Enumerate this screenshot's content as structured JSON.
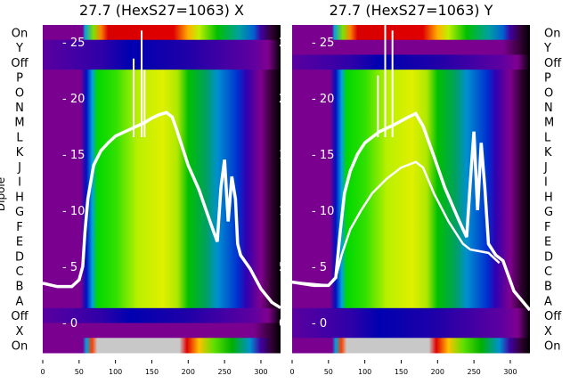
{
  "chart_data": [
    {
      "type": "heatmap",
      "title": "27.7 (HexS27=1063) X",
      "ylabel": "Dipole",
      "row_labels_side": "left",
      "rows": [
        "On",
        "Y",
        "Off",
        "P",
        "O",
        "N",
        "M",
        "L",
        "K",
        "J",
        "I",
        "H",
        "G",
        "F",
        "E",
        "D",
        "C",
        "B",
        "A",
        "Off",
        "X",
        "On"
      ],
      "xlim": [
        0,
        327
      ],
      "xticks": [
        0,
        50,
        100,
        150,
        200,
        250,
        300
      ],
      "inner_ylim": [
        -2.7,
        26.5
      ],
      "inner_yticks": [
        0,
        5,
        10,
        15,
        20,
        25
      ],
      "curves": [
        [
          [
            0,
            3.5
          ],
          [
            20,
            3.2
          ],
          [
            40,
            3.2
          ],
          [
            50,
            3.8
          ],
          [
            55,
            5
          ],
          [
            58,
            8
          ],
          [
            62,
            11
          ],
          [
            70,
            14
          ],
          [
            80,
            15.3
          ],
          [
            90,
            16
          ],
          [
            100,
            16.6
          ],
          [
            120,
            17.2
          ],
          [
            140,
            17.8
          ],
          [
            150,
            18.2
          ],
          [
            160,
            18.5
          ],
          [
            170,
            18.7
          ],
          [
            178,
            18.3
          ],
          [
            185,
            17
          ],
          [
            200,
            14
          ],
          [
            215,
            11.8
          ],
          [
            230,
            9
          ],
          [
            240,
            7.2
          ],
          [
            245,
            12
          ],
          [
            250,
            14.5
          ],
          [
            255,
            9
          ],
          [
            260,
            13
          ],
          [
            265,
            11
          ],
          [
            268,
            7
          ],
          [
            272,
            6
          ],
          [
            285,
            4.8
          ],
          [
            300,
            3
          ],
          [
            315,
            1.8
          ],
          [
            327,
            1.3
          ]
        ]
      ],
      "spikes": [
        [
          125,
          23.5
        ],
        [
          136,
          26
        ],
        [
          140,
          22.5
        ]
      ]
    },
    {
      "type": "heatmap",
      "title": "27.7 (HexS27=1063) Y",
      "row_labels_side": "right",
      "rows": [
        "On",
        "Y",
        "Off",
        "P",
        "O",
        "N",
        "M",
        "L",
        "K",
        "J",
        "I",
        "H",
        "G",
        "F",
        "E",
        "D",
        "C",
        "B",
        "A",
        "Off",
        "X",
        "On"
      ],
      "xlim": [
        0,
        327
      ],
      "xticks": [
        0,
        50,
        100,
        150,
        200,
        250,
        300
      ],
      "inner_ylim": [
        -2.7,
        26.5
      ],
      "inner_yticks": [
        0,
        5,
        10,
        15,
        20,
        25
      ],
      "curves": [
        [
          [
            0,
            3.6
          ],
          [
            30,
            3.3
          ],
          [
            50,
            3.3
          ],
          [
            60,
            4
          ],
          [
            66,
            8
          ],
          [
            72,
            11.5
          ],
          [
            80,
            13.5
          ],
          [
            90,
            15
          ],
          [
            100,
            16
          ],
          [
            120,
            17
          ],
          [
            140,
            17.6
          ],
          [
            160,
            18.3
          ],
          [
            170,
            18.6
          ],
          [
            180,
            17.5
          ],
          [
            195,
            14.8
          ],
          [
            210,
            12
          ],
          [
            230,
            9
          ],
          [
            240,
            7.6
          ],
          [
            245,
            12.5
          ],
          [
            250,
            17
          ],
          [
            255,
            10
          ],
          [
            260,
            16
          ],
          [
            265,
            12
          ],
          [
            270,
            7
          ],
          [
            280,
            6
          ],
          [
            290,
            5.5
          ],
          [
            305,
            2.8
          ],
          [
            327,
            1.1
          ]
        ],
        [
          [
            0,
            3.6
          ],
          [
            50,
            3.3
          ],
          [
            60,
            4
          ],
          [
            68,
            6
          ],
          [
            80,
            8.3
          ],
          [
            95,
            10
          ],
          [
            110,
            11.5
          ],
          [
            130,
            12.8
          ],
          [
            150,
            13.8
          ],
          [
            170,
            14.3
          ],
          [
            180,
            13.8
          ],
          [
            195,
            11.5
          ],
          [
            215,
            9
          ],
          [
            235,
            7
          ],
          [
            245,
            6.5
          ],
          [
            270,
            6.2
          ],
          [
            285,
            5.3
          ]
        ]
      ],
      "spikes": [
        [
          118,
          22
        ],
        [
          128,
          27
        ],
        [
          138,
          26
        ]
      ]
    }
  ]
}
